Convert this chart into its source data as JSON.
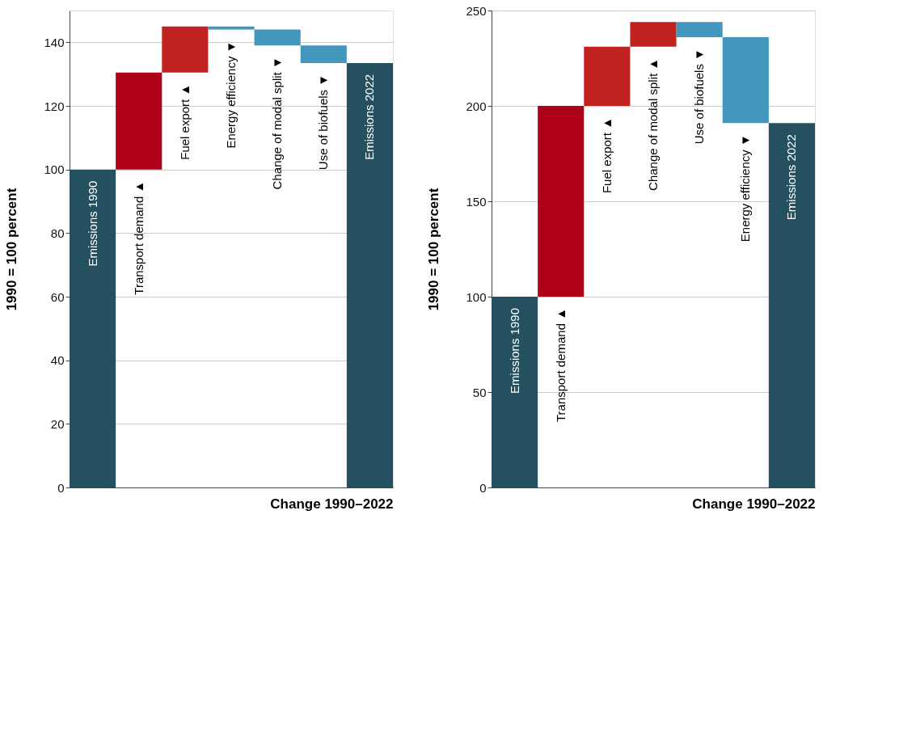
{
  "chart_data": [
    {
      "type": "bar",
      "xlabel": "Change 1990–2022",
      "ylabel": "1990 = 100 percent",
      "categories": [
        "Emissions 1990",
        "Transport demand ▲",
        "Fuel export ▲",
        "Energy efficiency ▼",
        "Change of modal split ▼",
        "Use of biofuels ▼",
        "Emissions 2022"
      ],
      "values": [
        100,
        30.5,
        14.5,
        -1,
        -5,
        -5.5,
        133.5
      ],
      "base": [
        0,
        100,
        130.5,
        145,
        144,
        139,
        0
      ],
      "colors": [
        "#25505f",
        "#ae0019",
        "#c0231f",
        "#4396be",
        "#4396be",
        "#4396be",
        "#25505f"
      ],
      "ylim": [
        0,
        150
      ],
      "yticks": [
        0,
        20,
        40,
        60,
        80,
        100,
        120,
        140
      ],
      "grid": "y"
    },
    {
      "type": "bar",
      "xlabel": "Change 1990–2022",
      "ylabel": "1990 = 100 percent",
      "categories": [
        "Emissions 1990",
        "Transport demand ▲",
        "Fuel export ▲",
        "Change of modal split ▲",
        "Use of biofuels ▼",
        "Energy efficiency ▼",
        "Emissions 2022"
      ],
      "values": [
        100,
        100,
        31,
        13,
        -8,
        -45,
        191
      ],
      "base": [
        0,
        100,
        200,
        231,
        244,
        236,
        0
      ],
      "colors": [
        "#25505f",
        "#ae0019",
        "#c0231f",
        "#c0231f",
        "#4396be",
        "#4396be",
        "#25505f"
      ],
      "ylim": [
        0,
        250
      ],
      "yticks": [
        0,
        50,
        100,
        150,
        200,
        250
      ],
      "grid": "y"
    }
  ]
}
